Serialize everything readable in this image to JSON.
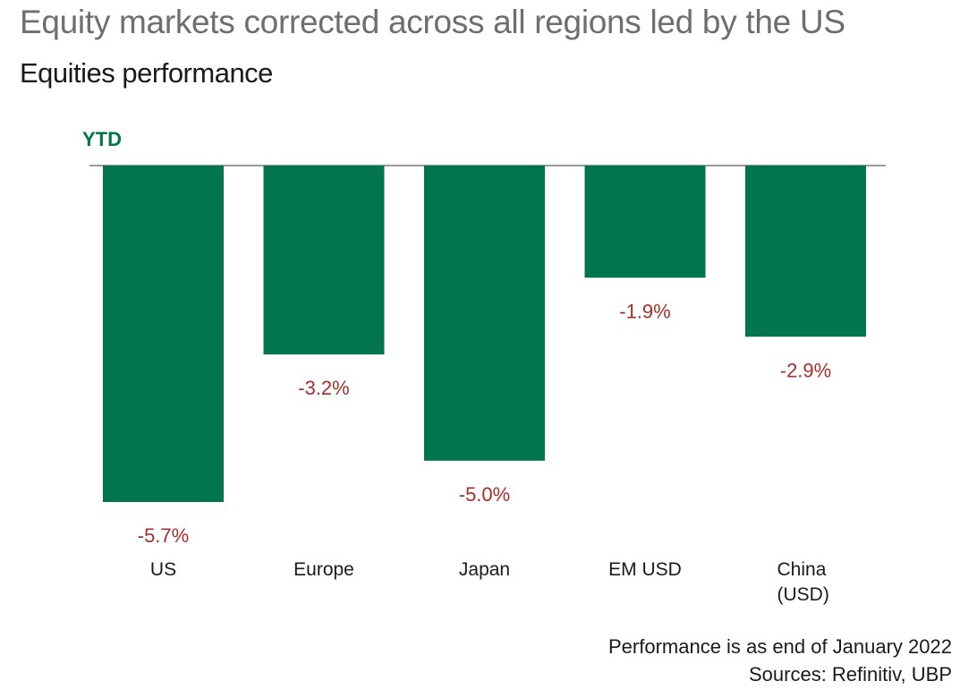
{
  "header": {
    "title": "Equity markets corrected across all regions led by the US",
    "subtitle": "Equities performance"
  },
  "chart_data": {
    "type": "bar",
    "title": "Equities performance",
    "series_label": "YTD",
    "categories": [
      "US",
      "Europe",
      "Japan",
      "EM USD",
      "China (USD)"
    ],
    "category_lines": [
      [
        "US"
      ],
      [
        "Europe"
      ],
      [
        "Japan"
      ],
      [
        "EM USD"
      ],
      [
        "China",
        "(USD)"
      ]
    ],
    "values": [
      -5.7,
      -3.2,
      -5.0,
      -1.9,
      -2.9
    ],
    "value_labels": [
      "-5.7%",
      "-3.2%",
      "-5.0%",
      "-1.9%",
      "-2.9%"
    ],
    "unit": "%",
    "ylim": [
      -5.7,
      0
    ],
    "grid": false,
    "xlabel": "",
    "ylabel": ""
  },
  "colors": {
    "bar": "#007550",
    "value_label": "#a3302c",
    "baseline": "#9a9a9a",
    "title": "#6d6e70"
  },
  "footer": {
    "note": "Performance is as end of January 2022",
    "sources": "Sources: Refinitiv, UBP"
  }
}
